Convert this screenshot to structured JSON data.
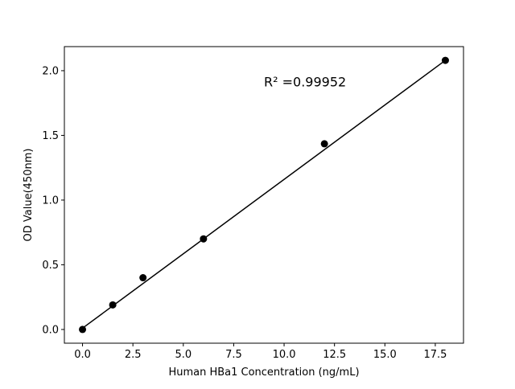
{
  "chart_data": {
    "type": "scatter",
    "title": "",
    "xlabel": "Human HBa1 Concentration (ng/mL)",
    "ylabel": "OD Value(450nm)",
    "xlim": [
      -0.9,
      18.9
    ],
    "ylim": [
      -0.106,
      2.186
    ],
    "xticks": [
      0.0,
      2.5,
      5.0,
      7.5,
      10.0,
      12.5,
      15.0,
      17.5
    ],
    "xtick_labels": [
      "0.0",
      "2.5",
      "5.0",
      "7.5",
      "10.0",
      "12.5",
      "15.0",
      "17.5"
    ],
    "yticks": [
      0.0,
      0.5,
      1.0,
      1.5,
      2.0
    ],
    "ytick_labels": [
      "0.0",
      "0.5",
      "1.0",
      "1.5",
      "2.0"
    ],
    "grid": false,
    "points": {
      "x": [
        0,
        1.5,
        3,
        6,
        12,
        18
      ],
      "y": [
        0.0,
        0.19,
        0.4,
        0.7,
        1.435,
        2.08
      ]
    },
    "fit_line": {
      "x": [
        0,
        18
      ],
      "y": [
        0.01,
        2.08
      ]
    },
    "annotation": "R² =0.99952",
    "annotation_pos": {
      "x": 9.0,
      "y": 1.88
    },
    "color": "#000000"
  }
}
